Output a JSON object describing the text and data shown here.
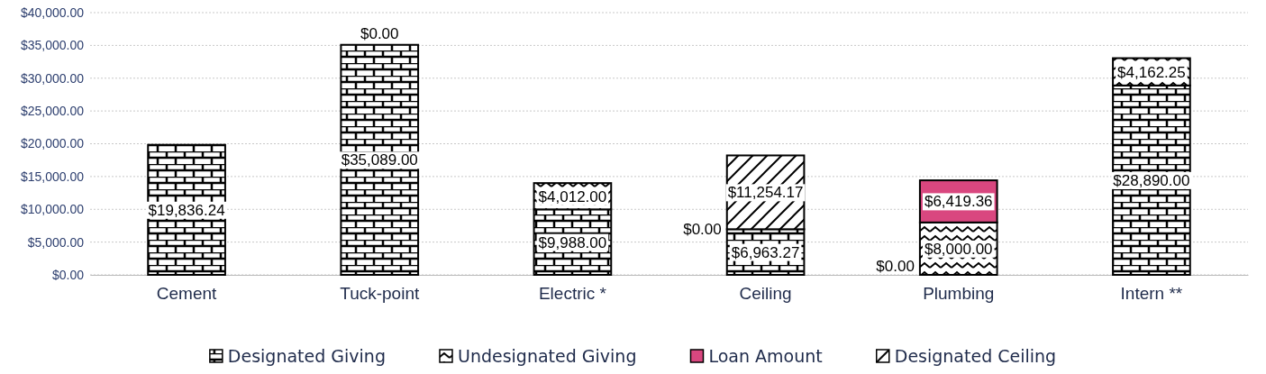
{
  "chart_data": {
    "type": "bar",
    "stacked": true,
    "categories": [
      "Cement",
      "Tuck-point",
      "Electric *",
      "Ceiling",
      "Plumbing",
      "Intern **"
    ],
    "series": [
      {
        "name": "Designated Giving",
        "color": "#000000",
        "values": [
          19836.24,
          35089,
          9988,
          6963.27,
          0,
          28890
        ],
        "value_labels": [
          "$19,836.24",
          "$35,089.00",
          "$9,988.00",
          "$6,963.27",
          null,
          "$28,890.00"
        ]
      },
      {
        "name": "Undesignated Giving",
        "color": "#000000",
        "values": [
          0,
          0,
          4012,
          0,
          8000,
          4162.25
        ],
        "value_labels": [
          null,
          "$0.00",
          "$4,012.00",
          null,
          "$8,000.00",
          "$4,162.25"
        ]
      },
      {
        "name": "Loan Amount",
        "color": "#d9477f",
        "values": [
          0,
          0,
          0,
          0,
          6419.36,
          0
        ],
        "value_labels": [
          null,
          null,
          null,
          null,
          "$6,419.36",
          null
        ]
      },
      {
        "name": "Designated Ceiling",
        "color": "#000000",
        "values": [
          0,
          0,
          0,
          11254.17,
          0,
          0
        ],
        "value_labels": [
          null,
          null,
          null,
          "$11,254.17",
          null,
          null
        ]
      }
    ],
    "ylim": [
      0,
      40000
    ],
    "yticks": [
      {
        "value": 0,
        "label": "$0.00"
      },
      {
        "value": 5000,
        "label": "$5,000.00"
      },
      {
        "value": 10000,
        "label": "$10,000.00"
      },
      {
        "value": 15000,
        "label": "$15,000.00"
      },
      {
        "value": 20000,
        "label": "$20,000.00"
      },
      {
        "value": 25000,
        "label": "$25,000.00"
      },
      {
        "value": 30000,
        "label": "$30,000.00"
      },
      {
        "value": 35000,
        "label": "$35,000.00"
      },
      {
        "value": 40000,
        "label": "$40,000.00"
      }
    ],
    "annotations": [
      {
        "text": "$0.00",
        "x": "Ceiling",
        "y": 6963.27
      },
      {
        "text": "$0.00",
        "x": "Plumbing",
        "y": 0
      }
    ],
    "grid": "y",
    "legend": "bottom"
  }
}
